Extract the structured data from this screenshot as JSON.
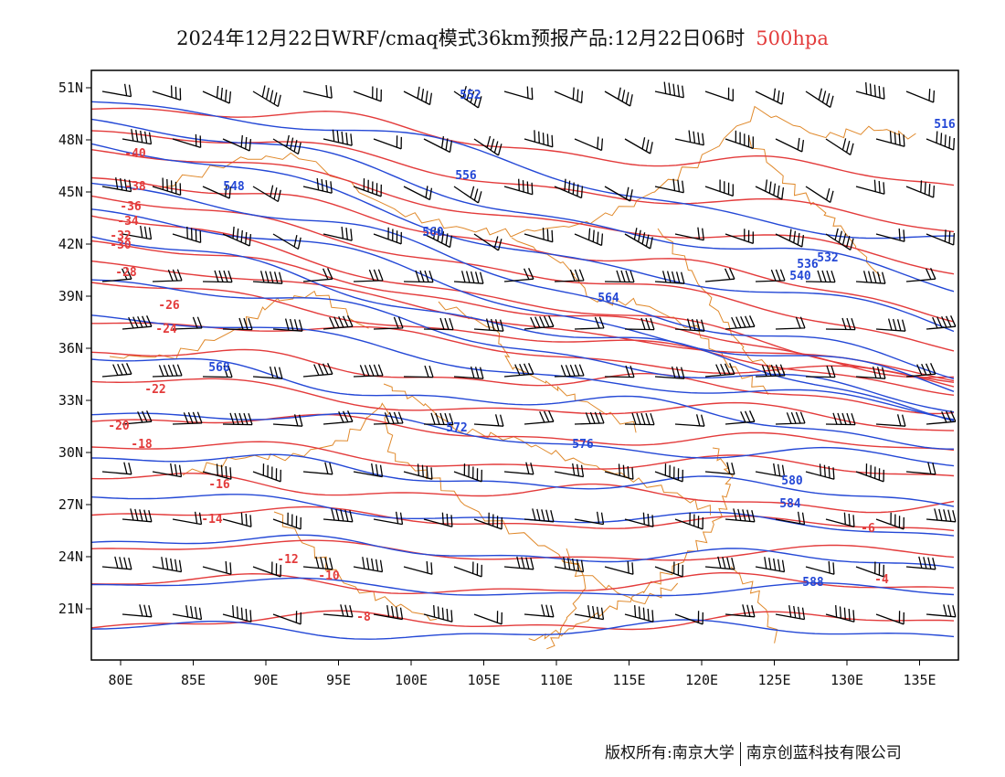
{
  "title": {
    "main": "2024年12月22日WRF/cmaq模式36km预报产品:12月22日06时",
    "level": "500hpa",
    "level_color": "#e33b3b"
  },
  "footer": {
    "copyright": "版权所有:南京大学",
    "company": "南京创蓝科技有限公司"
  },
  "colors": {
    "temperature_contour": "#e33b3b",
    "height_contour": "#2448d6",
    "boundary": "#e0892b",
    "wind_barb": "#000000"
  },
  "axes": {
    "lat_labels": [
      "51N",
      "48N",
      "45N",
      "42N",
      "39N",
      "36N",
      "33N",
      "30N",
      "27N",
      "24N",
      "21N"
    ],
    "lon_labels": [
      "80E",
      "85E",
      "90E",
      "95E",
      "100E",
      "105E",
      "110E",
      "115E",
      "120E",
      "125E",
      "130E",
      "135E"
    ]
  },
  "contour_labels": {
    "temperature": [
      "-40",
      "-38",
      "-36",
      "-34",
      "-32",
      "-30",
      "-28",
      "-26",
      "-24",
      "-22",
      "-20",
      "-18",
      "-16",
      "-14",
      "-12",
      "-10",
      "-8",
      "-6",
      "-4"
    ],
    "height": [
      "516",
      "532",
      "536",
      "540",
      "548",
      "552",
      "556",
      "560",
      "564",
      "568",
      "572",
      "576",
      "580",
      "584",
      "588"
    ]
  }
}
